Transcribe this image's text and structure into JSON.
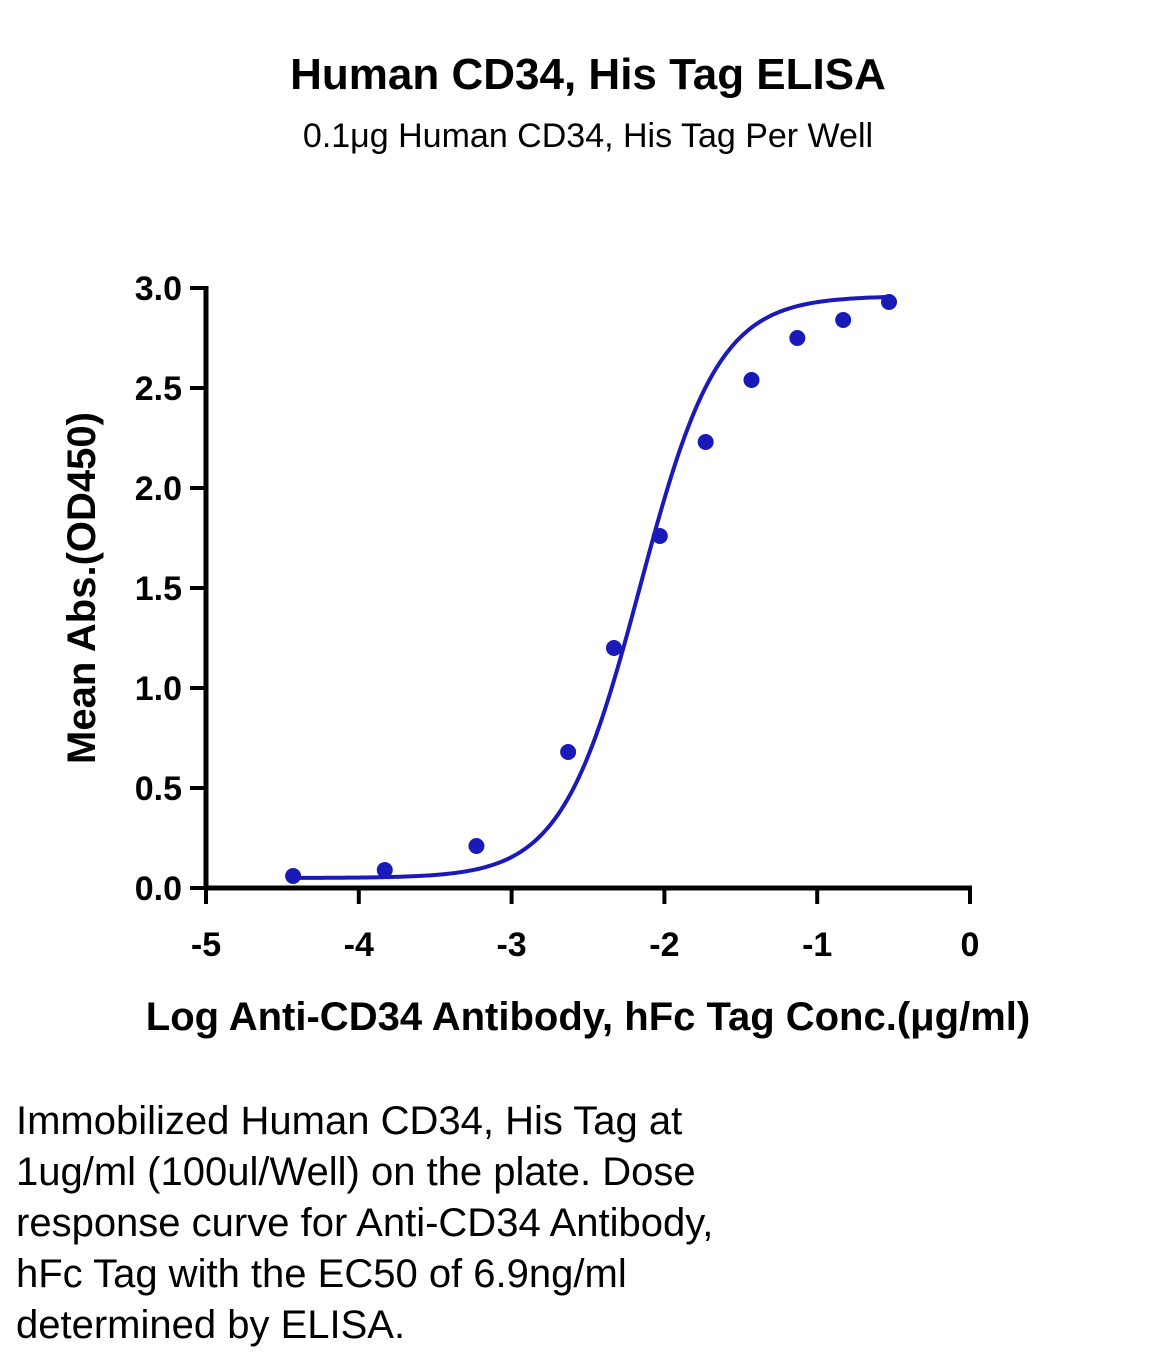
{
  "chart_data": {
    "type": "scatter",
    "title": "Human CD34, His Tag ELISA",
    "subtitle": "0.1μg Human CD34, His Tag Per Well",
    "xlabel": "Log Anti-CD34 Antibody, hFc Tag Conc.(μg/ml)",
    "ylabel": "Mean Abs.(OD450)",
    "xlim": [
      -5,
      0
    ],
    "ylim": [
      0,
      3.0
    ],
    "x_ticks": [
      "-5",
      "-4",
      "-3",
      "-2",
      "-1",
      "0"
    ],
    "y_ticks": [
      "0.0",
      "0.5",
      "1.0",
      "1.5",
      "2.0",
      "2.5",
      "3.0"
    ],
    "grid": false,
    "series": [
      {
        "color": "#1a1ab8",
        "x": [
          -4.43,
          -3.83,
          -3.23,
          -2.63,
          -2.33,
          -2.03,
          -1.73,
          -1.43,
          -1.13,
          -0.83,
          -0.53
        ],
        "y": [
          0.06,
          0.09,
          0.21,
          0.68,
          1.2,
          1.76,
          2.23,
          2.54,
          2.75,
          2.84,
          2.93
        ]
      }
    ],
    "fit_curve": {
      "type": "4PL sigmoid",
      "bottom": 0.05,
      "top": 2.96,
      "log_ec50": -2.16,
      "hill": 1.7
    }
  },
  "caption": "Immobilized Human CD34, His Tag at\n1ug/ml (100ul/Well) on the plate. Dose\nresponse curve for Anti-CD34 Antibody,\nhFc Tag with the EC50 of 6.9ng/ml\ndetermined by ELISA."
}
